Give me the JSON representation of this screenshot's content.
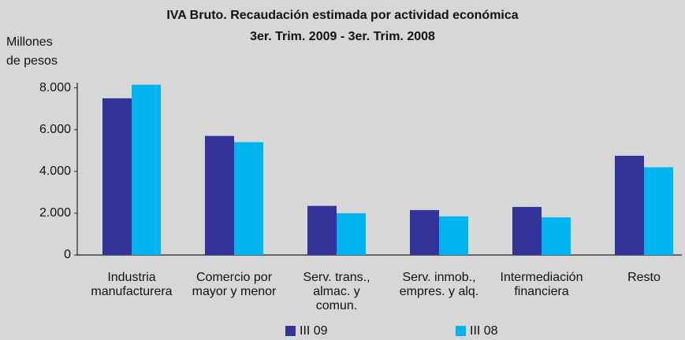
{
  "chart_data": {
    "type": "bar",
    "title": "IVA Bruto. Recaudación estimada por actividad económica\n3er. Trim. 2009 - 3er. Trim. 2008",
    "y_label": "Millones\nde pesos",
    "categories": [
      "Industria\nmanufacturera",
      "Comercio por\nmayor y menor",
      "Serv. trans.,\nalmac. y\ncomun.",
      "Serv. inmob.,\nempres. y alq.",
      "Intermediación\nfinanciera",
      "Resto"
    ],
    "series": [
      {
        "name": "III 09",
        "color": "#333399",
        "values": [
          7500,
          5700,
          2350,
          2150,
          2300,
          4750
        ]
      },
      {
        "name": "III 08",
        "color": "#00b4f0",
        "values": [
          8150,
          5400,
          2000,
          1850,
          1800,
          4200
        ]
      }
    ],
    "ylim": [
      0,
      8250
    ],
    "yticks": [
      0,
      {
        "value": 2000,
        "label": "2.000"
      },
      {
        "value": 4000,
        "label": "4.000"
      },
      {
        "value": 6000,
        "label": "6.000"
      },
      {
        "value": 8000,
        "label": "8.000"
      }
    ],
    "legend": "bottom"
  }
}
